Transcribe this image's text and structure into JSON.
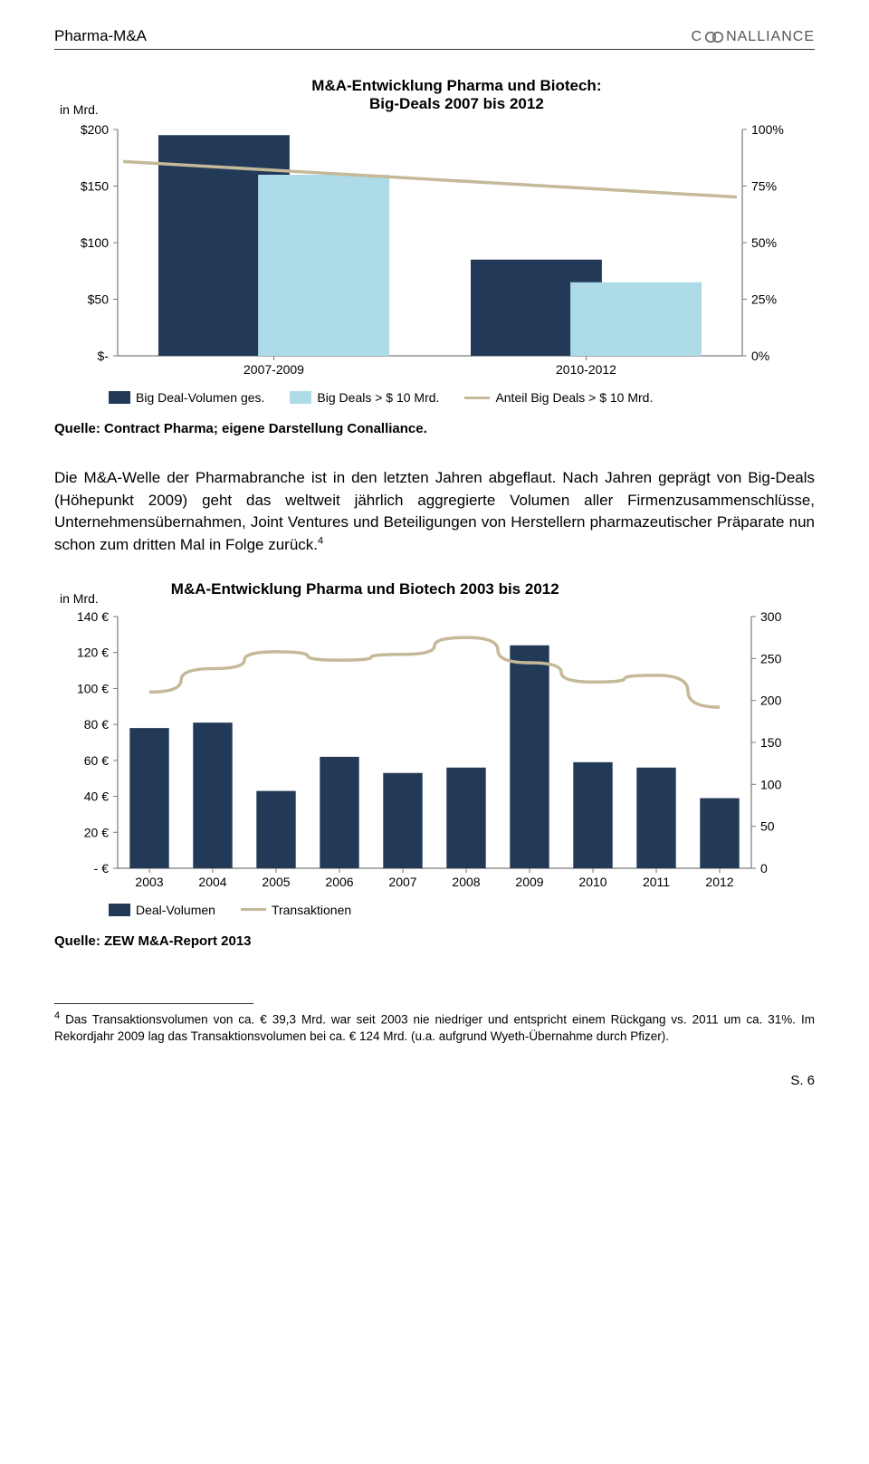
{
  "header": {
    "title": "Pharma-M&A",
    "logo_text_before": "C",
    "logo_text_after": "NALLIANCE"
  },
  "chart1": {
    "unit_label": "in Mrd.",
    "title_line1": "M&A-Entwicklung Pharma und Biotech:",
    "title_line2": "Big-Deals 2007 bis 2012",
    "type": "grouped-bar+line",
    "categories": [
      "2007-2009",
      "2010-2012"
    ],
    "y_left_ticks": [
      "$200",
      "$150",
      "$100",
      "$50",
      "$-"
    ],
    "y_left_max": 200,
    "y_right_ticks": [
      "100%",
      "75%",
      "50%",
      "25%",
      "0%"
    ],
    "y_right_max": 100,
    "series_bar1": {
      "name": "Big Deal-Volumen ges.",
      "color": "#223a58",
      "values": [
        195,
        85
      ]
    },
    "series_bar2": {
      "name": "Big Deals > $ 10 Mrd.",
      "color": "#addbe8",
      "values": [
        160,
        65
      ]
    },
    "series_line": {
      "name": "Anteil Big Deals > $ 10 Mrd.",
      "color": "#c5b999",
      "values": [
        82,
        74
      ]
    },
    "background_color": "#ffffff",
    "axis_color": "#7a7a7a",
    "tick_color": "#7a7a7a",
    "label_fontsize": 14,
    "source": "Quelle: Contract Pharma; eigene Darstellung Conalliance."
  },
  "body_paragraph": "Die M&A-Welle der Pharmabranche ist in den letzten Jahren abgeflaut. Nach Jahren geprägt von Big-Deals (Höhepunkt 2009) geht das weltweit jährlich aggregierte Volumen aller Firmenzusammenschlüsse, Unternehmensübernahmen, Joint Ventures und Beteiligungen von Herstellern pharmazeutischer Präparate nun schon zum dritten Mal in Folge zurück.",
  "footnote_ref": "4",
  "chart2": {
    "unit_label": "in Mrd.",
    "title": "M&A-Entwicklung Pharma und Biotech 2003 bis 2012",
    "type": "bar+line",
    "categories": [
      "2003",
      "2004",
      "2005",
      "2006",
      "2007",
      "2008",
      "2009",
      "2010",
      "2011",
      "2012"
    ],
    "y_left_ticks": [
      "140 €",
      "120 €",
      "100 €",
      "80 €",
      "60 €",
      "40 €",
      "20 €",
      "-   €"
    ],
    "y_left_max": 140,
    "y_right_ticks": [
      "300",
      "250",
      "200",
      "150",
      "100",
      "50",
      "0"
    ],
    "y_right_max": 300,
    "series_bar": {
      "name": "Deal-Volumen",
      "color": "#223a58",
      "values": [
        78,
        81,
        43,
        62,
        53,
        56,
        124,
        59,
        56,
        39
      ]
    },
    "series_line": {
      "name": "Transaktionen",
      "color": "#c5b999",
      "values": [
        210,
        238,
        258,
        248,
        255,
        275,
        245,
        222,
        230,
        192
      ]
    },
    "background_color": "#ffffff",
    "axis_color": "#7a7a7a",
    "label_fontsize": 14,
    "source": "Quelle: ZEW M&A-Report 2013"
  },
  "footnote_text": "Das Transaktionsvolumen von ca. € 39,3 Mrd. war seit 2003 nie niedriger und entspricht einem Rückgang vs. 2011 um ca. 31%. Im Rekordjahr 2009 lag das Transaktionsvolumen bei ca. € 124 Mrd. (u.a. aufgrund Wyeth-Übernahme durch Pfizer).",
  "page_number": "S. 6"
}
